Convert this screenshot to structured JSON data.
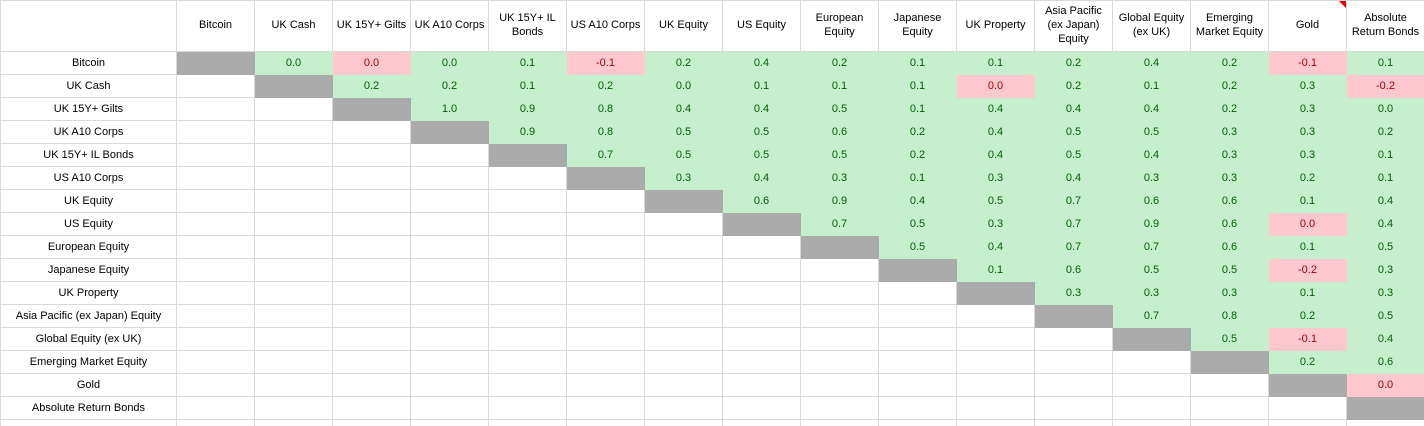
{
  "table": {
    "corner_label": "",
    "assets": [
      "Bitcoin",
      "UK Cash",
      "UK 15Y+ Gilts",
      "UK A10 Corps",
      "UK 15Y+ IL Bonds",
      "US A10 Corps",
      "UK Equity",
      "US Equity",
      "European Equity",
      "Japanese Equity",
      "UK Property",
      "Asia Pacific (ex Japan) Equity",
      "Global Equity (ex UK)",
      "Emerging Market Equity",
      "Gold",
      "Absolute Return Bonds"
    ],
    "comment_marker": {
      "column": "Gold",
      "position": "top-right",
      "color": "#e00000"
    }
  },
  "chart_data": {
    "type": "heatmap",
    "description": "Correlation matrix (upper triangle). Rows and columns use the same asset list. Cell encoding: \"\" = blank below-diagonal cell, \"#\" = grey diagonal cell, plain number = positive-formatted value (green), leading ! = negative-formatted value (pink).",
    "x_categories": [
      "Bitcoin",
      "UK Cash",
      "UK 15Y+ Gilts",
      "UK A10 Corps",
      "UK 15Y+ IL Bonds",
      "US A10 Corps",
      "UK Equity",
      "US Equity",
      "European Equity",
      "Japanese Equity",
      "UK Property",
      "Asia Pacific (ex Japan) Equity",
      "Global Equity (ex UK)",
      "Emerging Market Equity",
      "Gold",
      "Absolute Return Bonds"
    ],
    "y_categories": [
      "Bitcoin",
      "UK Cash",
      "UK 15Y+ Gilts",
      "UK A10 Corps",
      "UK 15Y+ IL Bonds",
      "US A10 Corps",
      "UK Equity",
      "US Equity",
      "European Equity",
      "Japanese Equity",
      "UK Property",
      "Asia Pacific (ex Japan) Equity",
      "Global Equity (ex UK)",
      "Emerging Market Equity",
      "Gold",
      "Absolute Return Bonds"
    ],
    "rows": [
      [
        "#",
        "0.0",
        "!0.0",
        "0.0",
        "0.1",
        "!-0.1",
        "0.2",
        "0.4",
        "0.2",
        "0.1",
        "0.1",
        "0.2",
        "0.4",
        "0.2",
        "!-0.1",
        "0.1"
      ],
      [
        "",
        "#",
        "0.2",
        "0.2",
        "0.1",
        "0.2",
        "0.0",
        "0.1",
        "0.1",
        "0.1",
        "!0.0",
        "0.2",
        "0.1",
        "0.2",
        "0.3",
        "!-0.2"
      ],
      [
        "",
        "",
        "#",
        "1.0",
        "0.9",
        "0.8",
        "0.4",
        "0.4",
        "0.5",
        "0.1",
        "0.4",
        "0.4",
        "0.4",
        "0.2",
        "0.3",
        "0.0"
      ],
      [
        "",
        "",
        "",
        "#",
        "0.9",
        "0.8",
        "0.5",
        "0.5",
        "0.6",
        "0.2",
        "0.4",
        "0.5",
        "0.5",
        "0.3",
        "0.3",
        "0.2"
      ],
      [
        "",
        "",
        "",
        "",
        "#",
        "0.7",
        "0.5",
        "0.5",
        "0.5",
        "0.2",
        "0.4",
        "0.5",
        "0.4",
        "0.3",
        "0.3",
        "0.1"
      ],
      [
        "",
        "",
        "",
        "",
        "",
        "#",
        "0.3",
        "0.4",
        "0.3",
        "0.1",
        "0.3",
        "0.4",
        "0.3",
        "0.3",
        "0.2",
        "0.1"
      ],
      [
        "",
        "",
        "",
        "",
        "",
        "",
        "#",
        "0.6",
        "0.9",
        "0.4",
        "0.5",
        "0.7",
        "0.6",
        "0.6",
        "0.1",
        "0.4"
      ],
      [
        "",
        "",
        "",
        "",
        "",
        "",
        "",
        "#",
        "0.7",
        "0.5",
        "0.3",
        "0.7",
        "0.9",
        "0.6",
        "!0.0",
        "0.4"
      ],
      [
        "",
        "",
        "",
        "",
        "",
        "",
        "",
        "",
        "#",
        "0.5",
        "0.4",
        "0.7",
        "0.7",
        "0.6",
        "0.1",
        "0.5"
      ],
      [
        "",
        "",
        "",
        "",
        "",
        "",
        "",
        "",
        "",
        "#",
        "0.1",
        "0.6",
        "0.5",
        "0.5",
        "!-0.2",
        "0.3"
      ],
      [
        "",
        "",
        "",
        "",
        "",
        "",
        "",
        "",
        "",
        "",
        "#",
        "0.3",
        "0.3",
        "0.3",
        "0.1",
        "0.3"
      ],
      [
        "",
        "",
        "",
        "",
        "",
        "",
        "",
        "",
        "",
        "",
        "",
        "#",
        "0.7",
        "0.8",
        "0.2",
        "0.5"
      ],
      [
        "",
        "",
        "",
        "",
        "",
        "",
        "",
        "",
        "",
        "",
        "",
        "",
        "#",
        "0.5",
        "!-0.1",
        "0.4"
      ],
      [
        "",
        "",
        "",
        "",
        "",
        "",
        "",
        "",
        "",
        "",
        "",
        "",
        "",
        "#",
        "0.2",
        "0.6"
      ],
      [
        "",
        "",
        "",
        "",
        "",
        "",
        "",
        "",
        "",
        "",
        "",
        "",
        "",
        "",
        "#",
        "!0.0"
      ],
      [
        "",
        "",
        "",
        "",
        "",
        "",
        "",
        "",
        "",
        "",
        "",
        "",
        "",
        "",
        "",
        "#"
      ]
    ]
  },
  "colors": {
    "positive_bg": "#c6efce",
    "positive_text": "#006100",
    "negative_bg": "#ffc7ce",
    "negative_text": "#9c0006",
    "diagonal_bg": "#ababab",
    "grid_line": "#d9d9d9",
    "comment_indicator": "#e00000"
  }
}
